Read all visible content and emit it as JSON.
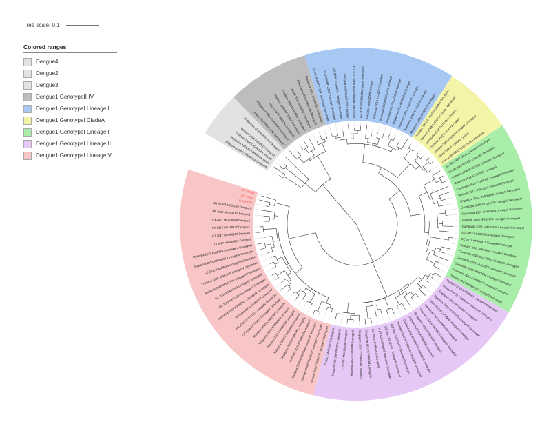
{
  "tree_scale": {
    "label": "Tree scale: 0.1"
  },
  "legend": {
    "title": "Colored ranges",
    "items": [
      {
        "label": "Dengue4",
        "color": "#e2e2e2"
      },
      {
        "label": "Dengue2",
        "color": "#e2e2e2"
      },
      {
        "label": "Dengue3",
        "color": "#e2e2e2"
      },
      {
        "label": "Dengue1 GenotypeII-IV",
        "color": "#bdbdbd"
      },
      {
        "label": "Dengue1 GenotypeI Lineage I",
        "color": "#a8c8f4"
      },
      {
        "label": "Dengue1 GenotypeI CladeA",
        "color": "#f4f4a8"
      },
      {
        "label": "Dengue1 GenotypeI LineageII",
        "color": "#a8eea8"
      },
      {
        "label": "Dengue1 GenotypeI LineageIII",
        "color": "#e6c8f6"
      },
      {
        "label": "Dengue1 GenotypeI LineageIV",
        "color": "#f8c6c6"
      }
    ]
  },
  "clades": [
    {
      "legend": 0,
      "leaves": [
        "Philippines 1956 KM204118 Dengue4",
        "Indonesia 1976 KY586699 Dengue4"
      ]
    },
    {
      "legend": 1,
      "leaves": [
        "Thailand 1964 KM204118 Dengue2",
        "Vietnam 2006 FJ639822 Dengue2"
      ]
    },
    {
      "legend": 2,
      "leaves": [
        "Philippines 1956 KU050695 Dengue3"
      ]
    },
    {
      "legend": 3,
      "leaves": [
        "Japan 1943 AB074761 GenotypeIV",
        "Philippines 1984 EU848545 GenotypeIV",
        "Nauru 1974 U88535 GenotypeIV",
        "Thailand 1980 AY732483 GenotypeII",
        "Thailand 1964 FJ469909 GenotypeII",
        "Brazil 2010 JX669461 GenotypeV",
        "Venezuela 2008 KF955445 GenotypeV",
        "Singapore 2012 KY586342 GenotypeIII"
      ]
    },
    {
      "legend": 4,
      "leaves": [
        "China 2014 KP723473 LineageI GenotypeI",
        "GZ 2013 KP723482 LineageI GenotypeI",
        "GZ 2006 JQ048541 LineageI GenotypeI",
        "Malaysia 2005 EU081226 LineageI",
        "GZ 2013 KR919820 LineageI GenotypeI",
        "GZ 2002 EU359008 LineageI GenotypeI",
        "HN 2019 MN923068 LineageI",
        "Indonesia 2010 KC762627 LineageI",
        "Indonesia 2009 KC762631 LineageI",
        "Indonesia 2012 KC762660 LineageI",
        "Singapore 2012 KY586338 LineageI",
        "Myanmar 2015 KT827373 LineageI",
        "Myanmar 2002 AY726549 LineageI",
        "Myanmar 2008 KT827375 LineageI"
      ]
    },
    {
      "legend": 5,
      "leaves": [
        "Thailand 2001 AY732479 CladeA GenotypeI",
        "Vietnam 2008 FJ639727 CladeA GenotypeI",
        "Cambodia 2008 GU131931 CladeA",
        "Thailand 2002 FJ639778 CladeA",
        "Vietnam 2007 FJ639755 CladeA GenotypeI",
        "China 2006 FJ196845 CladeA",
        "Laos 2008 KC172835 CladeA GenotypeI"
      ]
    },
    {
      "legend": 6,
      "leaves": [
        "GZ 2014 KP723471 LineageII GenotypeI",
        "GZ 2013 KF973453 LineageII GenotypeI",
        "Vietnam 2008 JF937632 LineageII GenotypeI",
        "Malaysia 2012 KX452097 LineageII",
        "Cambodia 2013 KJ189335 LineageII GenotypeI",
        "Vietnam 2012 JF967643 LineageII GenotypeI",
        "Singapore 2013 KY586858 LineageII GenotypeI",
        "Cambodia 2005 GU131970 LineageII GenotypeI",
        "Cambodia 2007 JN425486 LineageII GenotypeI",
        "Vietnam 2006 JF295775 LineageII GenotypeI",
        "Cambodia 2006 HM181930 LineageII GenotypeI",
        "GZ 2013 KC988553 LineageII GenotypeI",
        "GZ 2013 KF600815 LineageII GenotypeI",
        "Vietnam 2003 JF937654 LineageII GenotypeI",
        "Cambodia 2006 GU131832 LineageII GenotypeI",
        "Cambodia 2008 GU131837 LineageII GenotypeI",
        "Cambodia 2010 JF937632 LineageII GenotypeI",
        "Singapore 2013 KJ806957 LineageII GenotypeI",
        "Thailand 2013 KY586724 LineageII GenotypeI"
      ]
    },
    {
      "legend": 7,
      "leaves": [
        "Thailand 2010 KY586561 LineageIII GenotypeI",
        "Thailand 2009 KY586547 LineageIII GenotypeI",
        "Singapore 2013 KY586807 LineageIII",
        "Myanmar 2011 KT827376 LineageIII GenotypeI",
        "Laos 2012 KC172848 LineageIII GenotypeI",
        "Cambodia 2010 KF955440 LineageIII",
        "Vietnam 2011 KF955461 LineageIII GenotypeI",
        "Singapore 2012 KY586400 LineageIII",
        "Singapore 2013 KY586830 LineageIII",
        "Thailand 2012 KY586578 LineageIII GenotypeI",
        "Thailand 2011 KY586570 LineageIII GenotypeI",
        "GZ 2014 KP723474 LineageIII GenotypeI",
        "GZ 2014 KP723477 LineageIII GenotypeI",
        "YN 2013 KJ189306 LineageIII GenotypeI",
        "GZ 2013 KF955451 LineageIII",
        "Singapore 2014 KY586943 LineageIII",
        "Singapore 2013 KY586874 LineageIII",
        "Malaysia 2014 KX452093 LineageIII",
        "ZJ 2017 MH010629 LineageIII",
        "Singapore 2015 KY586970 LineageIII",
        "JX 2017 MH010631 LineageIII"
      ]
    },
    {
      "legend": 8,
      "leaves": [
        "Vietnam 2006 FJ639702 LineageIV GenotypeI",
        "Vietnam 2008 FJ639807 LineageIV GenotypeI",
        "Thailand 2012 KY586626 LineageIV GenotypeI",
        "Cambodia 2011 KF955438 LineageIV",
        "Singapore 2013 KY586786 LineageIV",
        "Malaysia 2014 KX452054 LineageIV",
        "Thailand 2013 KY586699 LineageIV",
        "Singapore 2015 KY586959 LineageIV",
        "Malaysia 2015 KX452068 LineageIV",
        "CZ 2014 KP723478 LineageIV GenotypeI",
        "HB 2014 KP772252 LineageIV GenotypeI",
        "Malaysia 2014 KX452072 LineageIV",
        "Indonesia 2015 KX380824 LineageIV GenotypeI",
        "GD 2014 MH010630 LineageIV GenotypeI",
        "GZ 2016 KX452043 LineageIV GenotypeI",
        "Malaysia 2008 JF967674 LineageIV GenotypeI",
        "Thailand 2008 JF967636 LineageIV GenotypeI",
        "GZ 2015 KX028614 LineageIV GenotypeI",
        "Singapore 2014 KJ806961 LineageIV GenotypeI",
        "Malaysia 2013 KJ806847 LineageIV GenotypeI",
        "ZJ 2017 MH010661 Dengue1",
        "GZ 2017 MK968213 Dengue1",
        "FN 2017 MF488117 Dengue1",
        "YN 2017 MF488168 Dengue1",
        "AR 2018 MK251189 Dengue1",
        "NB 2018 MK105259 Dengue1"
      ]
    },
    {
      "legend": 8,
      "highlight": "#ff4a4a",
      "leaves": [
        "XHN-N001",
        "CYX-N002",
        "ZHY-N003"
      ]
    }
  ]
}
